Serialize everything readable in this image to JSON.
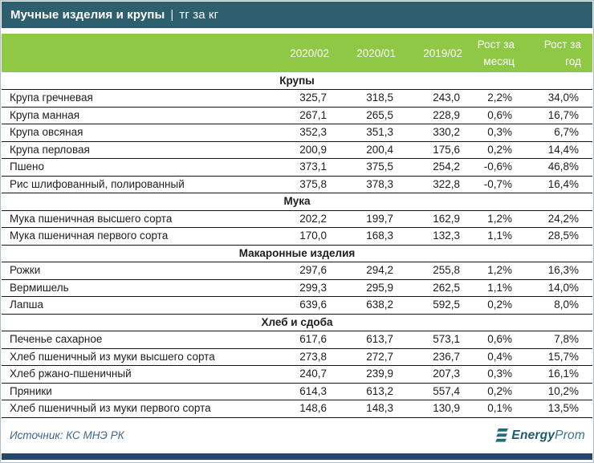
{
  "header": {
    "title": "Мучные изделия и крупы",
    "separator": "|",
    "unit": "тг за кг"
  },
  "table": {
    "columns_display": [
      "2020/02",
      "2020/01",
      "2019/02",
      "Рост за\nмесяц",
      "Рост за\nгод"
    ]
  },
  "chart_data": {
    "type": "table",
    "title": "Мучные изделия и крупы",
    "unit": "тг за кг",
    "columns": [
      "2020/02",
      "2020/01",
      "2019/02",
      "Рост за месяц",
      "Рост за год"
    ],
    "sections": [
      {
        "name": "Крупы",
        "rows": [
          {
            "label": "Крупа гречневая",
            "values": [
              "325,7",
              "318,5",
              "243,0",
              "2,2%",
              "34,0%"
            ]
          },
          {
            "label": "Крупа манная",
            "values": [
              "267,1",
              "265,5",
              "228,9",
              "0,6%",
              "16,7%"
            ]
          },
          {
            "label": "Крупа овсяная",
            "values": [
              "352,3",
              "351,3",
              "330,2",
              "0,3%",
              "6,7%"
            ]
          },
          {
            "label": "Крупа перловая",
            "values": [
              "200,9",
              "200,4",
              "175,6",
              "0,2%",
              "14,4%"
            ]
          },
          {
            "label": "Пшено",
            "values": [
              "373,1",
              "375,5",
              "254,2",
              "-0,6%",
              "46,8%"
            ]
          },
          {
            "label": "Рис шлифованный, полированный",
            "values": [
              "375,8",
              "378,3",
              "322,8",
              "-0,7%",
              "16,4%"
            ]
          }
        ]
      },
      {
        "name": "Мука",
        "rows": [
          {
            "label": "Мука пшеничная высшего сорта",
            "values": [
              "202,2",
              "199,7",
              "162,9",
              "1,2%",
              "24,2%"
            ]
          },
          {
            "label": "Мука пшеничная первого сорта",
            "values": [
              "170,0",
              "168,3",
              "132,3",
              "1,1%",
              "28,5%"
            ]
          }
        ]
      },
      {
        "name": "Макаронные изделия",
        "rows": [
          {
            "label": "Рожки",
            "values": [
              "297,6",
              "294,2",
              "255,8",
              "1,2%",
              "16,3%"
            ]
          },
          {
            "label": "Вермишель",
            "values": [
              "299,3",
              "295,9",
              "262,5",
              "1,1%",
              "14,0%"
            ]
          },
          {
            "label": "Лапша",
            "values": [
              "639,6",
              "638,2",
              "592,5",
              "0,2%",
              "8,0%"
            ]
          }
        ]
      },
      {
        "name": "Хлеб и сдоба",
        "rows": [
          {
            "label": "Печенье сахарное",
            "values": [
              "617,6",
              "613,7",
              "573,1",
              "0,6%",
              "7,8%"
            ]
          },
          {
            "label": "Хлеб пшеничный из муки высшего сорта",
            "values": [
              "273,8",
              "272,7",
              "236,7",
              "0,4%",
              "15,7%"
            ]
          },
          {
            "label": "Хлеб ржано-пшеничный",
            "values": [
              "240,7",
              "239,9",
              "207,3",
              "0,3%",
              "16,1%"
            ]
          },
          {
            "label": "Пряники",
            "values": [
              "614,3",
              "613,2",
              "557,4",
              "0,2%",
              "10,2%"
            ]
          },
          {
            "label": "Хлеб пшеничный из муки первого сорта",
            "values": [
              "148,6",
              "148,3",
              "130,9",
              "0,1%",
              "13,5%"
            ]
          }
        ]
      }
    ],
    "source": "Источник: КС МНЭ РК"
  },
  "footer": {
    "source": "Источник: КС МНЭ РК",
    "logo_bold": "Energy",
    "logo_light": "Prom"
  },
  "colors": {
    "page_border": "#aebdc7",
    "titlebar_bg": "#2e5f6e",
    "header_green": "#8ec845",
    "row_line": "#141414",
    "text": "#1d1d1d",
    "source_text": "#3e6589",
    "logo_teal": "#226a7e",
    "logo_text_dark": "#1d5a6e",
    "logo_text_light": "#35758c",
    "bottom_bar": "#27476a"
  }
}
